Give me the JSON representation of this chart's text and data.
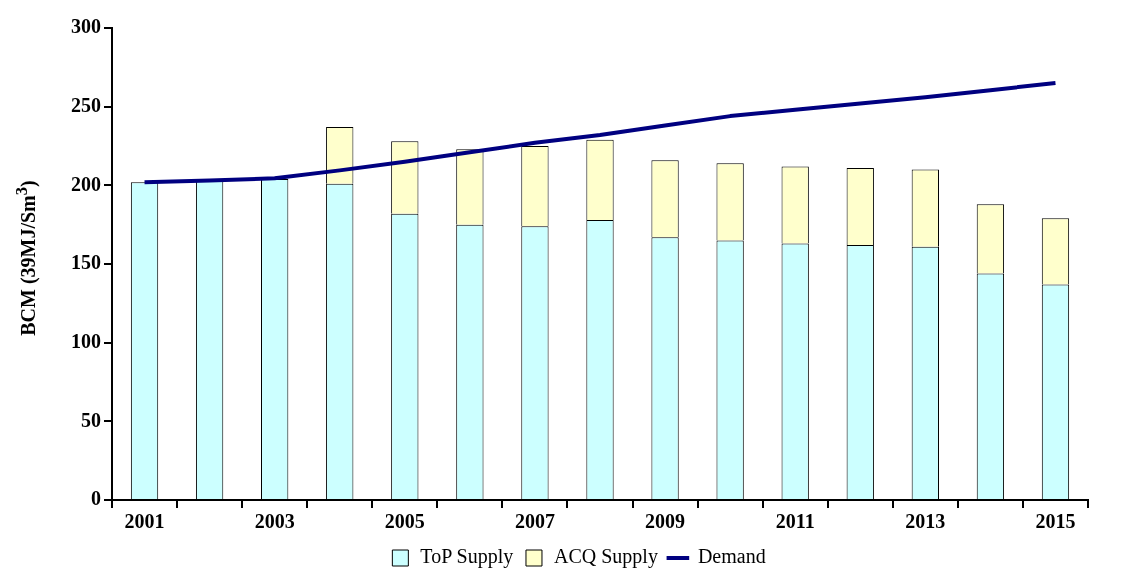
{
  "chart_data": {
    "type": "bar",
    "stacked": true,
    "ylabel": "BCM (39MJ/Sm$^{3}$)",
    "categories": [
      "2001",
      null,
      "2003",
      null,
      "2005",
      null,
      "2007",
      null,
      "2009",
      null,
      "2011",
      null,
      "2013",
      null,
      "2015"
    ],
    "series": [
      {
        "name": "ToP Supply",
        "color": "#ccffff",
        "values": [
          202,
          203,
          204,
          201,
          182,
          175,
          174,
          178,
          167,
          165,
          163,
          162,
          161,
          144,
          137
        ]
      },
      {
        "name": "ACQ Supply",
        "color": "#ffffcc",
        "values": [
          null,
          null,
          null,
          36,
          46,
          48,
          51,
          51,
          49,
          49,
          49,
          49,
          49,
          44,
          42
        ]
      },
      {
        "name": "Demand",
        "type": "line",
        "color": "#000080",
        "values": [
          202,
          203,
          204.5,
          209.5,
          215,
          221,
          227,
          232,
          238,
          244,
          248,
          252,
          256,
          260.5,
          265
        ]
      }
    ],
    "ylim": [
      0,
      300
    ],
    "yticks": [
      0,
      50,
      100,
      150,
      200,
      250,
      300
    ],
    "grid": false,
    "legend": "bottom",
    "marker": "none"
  }
}
